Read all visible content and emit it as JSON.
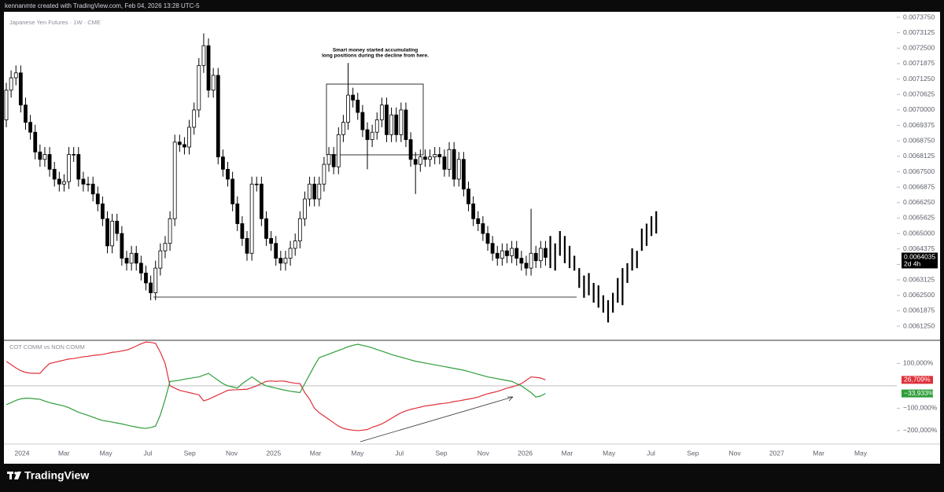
{
  "header": {
    "text": "kennanmte created with TradingView.com, Feb 04, 2026 13:28 UTC-5"
  },
  "footer": {
    "brand": "TradingView"
  },
  "time_axis": [
    "2024",
    "Mar",
    "May",
    "Jul",
    "Sep",
    "Nov",
    "2025",
    "Mar",
    "May",
    "Jul",
    "Sep",
    "Nov",
    "2026",
    "Mar",
    "May",
    "Jul",
    "Sep",
    "Nov",
    "2027",
    "Mar",
    "May"
  ],
  "chart_data": [
    {
      "type": "candlestick",
      "title": "Japanese Yen Futures · 1W · CME",
      "annotation": [
        "Smart money started accumulating",
        "long positions during the decline from here."
      ],
      "up_color": "#ffffff",
      "down_color": "#000000",
      "grid": false,
      "ylim": [
        0.006071,
        0.0073973
      ],
      "yticks": [
        {
          "value": 0.007375,
          "label": "0.0073750"
        },
        {
          "value": 0.0073125,
          "label": "0.0073125"
        },
        {
          "value": 0.00725,
          "label": "0.0072500"
        },
        {
          "value": 0.0071875,
          "label": "0.0071875"
        },
        {
          "value": 0.007125,
          "label": "0.0071250"
        },
        {
          "value": 0.0070625,
          "label": "0.0070625"
        },
        {
          "value": 0.007,
          "label": "0.0070000"
        },
        {
          "value": 0.0069375,
          "label": "0.0069375"
        },
        {
          "value": 0.006875,
          "label": "0.0068750"
        },
        {
          "value": 0.0068125,
          "label": "0.0068125"
        },
        {
          "value": 0.00675,
          "label": "0.0067500"
        },
        {
          "value": 0.0066875,
          "label": "0.0066875"
        },
        {
          "value": 0.006625,
          "label": "0.0066250"
        },
        {
          "value": 0.0065625,
          "label": "0.0065625"
        },
        {
          "value": 0.0065,
          "label": "0.0065000"
        },
        {
          "value": 0.0064375,
          "label": "0.0064375"
        },
        {
          "value": 0.006375,
          "label": "0.0063750"
        },
        {
          "value": 0.0063125,
          "label": "0.0063125"
        },
        {
          "value": 0.00625,
          "label": "0.0062500"
        },
        {
          "value": 0.0061875,
          "label": "0.0061875"
        },
        {
          "value": 0.006125,
          "label": "0.0061250"
        }
      ],
      "last_price_label": "0.0064035",
      "countdown": "2d 4h",
      "open": [
        0.00696,
        0.00708,
        0.00713,
        0.00715,
        0.00702,
        0.00695,
        0.00691,
        0.00683,
        0.0068,
        0.00682,
        0.00676,
        0.00672,
        0.0067,
        0.00671,
        0.00682,
        0.00682,
        0.00672,
        0.0067,
        0.0067,
        0.00666,
        0.00662,
        0.00656,
        0.00645,
        0.00655,
        0.0065,
        0.0064,
        0.00638,
        0.00642,
        0.00638,
        0.00634,
        0.0063,
        0.00626,
        0.00636,
        0.00643,
        0.00646,
        0.00656,
        0.00687,
        0.00686,
        0.00685,
        0.00693,
        0.007,
        0.00718,
        0.00726,
        0.00708,
        0.00714,
        0.00681,
        0.00676,
        0.00672,
        0.00662,
        0.00654,
        0.00648,
        0.00642,
        0.0067,
        0.0067,
        0.00656,
        0.00648,
        0.00646,
        0.0064,
        0.00638,
        0.0064,
        0.00644,
        0.00647,
        0.00656,
        0.00664,
        0.0067,
        0.00664,
        0.0067,
        0.00678,
        0.00682,
        0.00677,
        0.0069,
        0.00695,
        0.00706,
        0.00704,
        0.00699,
        0.00692,
        0.00688,
        0.00691,
        0.00696,
        0.00702,
        0.0069,
        0.00698,
        0.0069,
        0.007,
        0.00688,
        0.0068,
        0.00678,
        0.00681,
        0.0068,
        0.00681,
        0.00682,
        0.00681,
        0.00676,
        0.00684,
        0.00672,
        0.0068,
        0.00668,
        0.00662,
        0.00656,
        0.00654,
        0.0065,
        0.00646,
        0.00642,
        0.0064,
        0.00643,
        0.00641,
        0.00644,
        0.0064,
        0.00638,
        0.00636,
        0.00642,
        0.00639,
        0.00644
      ],
      "high": [
        0.00711,
        0.00716,
        0.00718,
        0.00718,
        0.00705,
        0.00698,
        0.00694,
        0.00686,
        0.00685,
        0.00685,
        0.00679,
        0.00675,
        0.00674,
        0.00685,
        0.00685,
        0.00685,
        0.00675,
        0.00673,
        0.00673,
        0.00669,
        0.00665,
        0.00659,
        0.00658,
        0.00658,
        0.00653,
        0.00643,
        0.00645,
        0.00645,
        0.00641,
        0.00637,
        0.00633,
        0.00639,
        0.00646,
        0.00649,
        0.00659,
        0.0069,
        0.0069,
        0.00689,
        0.00696,
        0.00703,
        0.00721,
        0.00731,
        0.00729,
        0.00717,
        0.00717,
        0.00684,
        0.00679,
        0.00675,
        0.00665,
        0.00657,
        0.00651,
        0.00673,
        0.00673,
        0.00673,
        0.00659,
        0.00651,
        0.00649,
        0.00643,
        0.00643,
        0.00647,
        0.0065,
        0.00659,
        0.00667,
        0.00673,
        0.00673,
        0.00673,
        0.00681,
        0.00685,
        0.00685,
        0.00693,
        0.00698,
        0.00719,
        0.00709,
        0.00707,
        0.00702,
        0.00695,
        0.00694,
        0.00699,
        0.00705,
        0.00705,
        0.00701,
        0.00701,
        0.00703,
        0.00703,
        0.00691,
        0.00683,
        0.00684,
        0.00684,
        0.00684,
        0.00685,
        0.00685,
        0.00684,
        0.00687,
        0.00687,
        0.00683,
        0.00683,
        0.00671,
        0.00665,
        0.00659,
        0.00657,
        0.00653,
        0.00649,
        0.00645,
        0.00646,
        0.00646,
        0.00647,
        0.00647,
        0.00643,
        0.00641,
        0.0066,
        0.00645,
        0.00647,
        0.00647
      ],
      "low": [
        0.00693,
        0.00705,
        0.0071,
        0.00699,
        0.00692,
        0.00688,
        0.0068,
        0.00677,
        0.00677,
        0.00673,
        0.00669,
        0.00667,
        0.00667,
        0.00668,
        0.00679,
        0.00669,
        0.00667,
        0.00667,
        0.00663,
        0.00659,
        0.00653,
        0.00642,
        0.00642,
        0.00647,
        0.00637,
        0.00635,
        0.00635,
        0.00635,
        0.00631,
        0.00627,
        0.00623,
        0.00623,
        0.00633,
        0.0064,
        0.00643,
        0.00653,
        0.00683,
        0.00682,
        0.00682,
        0.0069,
        0.00697,
        0.00715,
        0.00705,
        0.00705,
        0.00678,
        0.00673,
        0.00669,
        0.00659,
        0.00651,
        0.00645,
        0.00639,
        0.00639,
        0.00667,
        0.00653,
        0.00645,
        0.00643,
        0.00637,
        0.00635,
        0.00635,
        0.00637,
        0.00641,
        0.00644,
        0.00653,
        0.00661,
        0.00661,
        0.00661,
        0.00667,
        0.00675,
        0.00674,
        0.00674,
        0.00687,
        0.00692,
        0.00701,
        0.00696,
        0.00689,
        0.00676,
        0.00685,
        0.00688,
        0.00693,
        0.00687,
        0.00687,
        0.00687,
        0.00687,
        0.00685,
        0.00677,
        0.00666,
        0.00675,
        0.00677,
        0.00677,
        0.00678,
        0.00678,
        0.00673,
        0.00673,
        0.00669,
        0.00669,
        0.00665,
        0.00659,
        0.00653,
        0.00651,
        0.00647,
        0.00643,
        0.00639,
        0.00637,
        0.00637,
        0.00638,
        0.00638,
        0.00637,
        0.00635,
        0.00633,
        0.00633,
        0.00636,
        0.00636,
        0.00637
      ],
      "close": [
        0.00708,
        0.00713,
        0.00715,
        0.00702,
        0.00695,
        0.00691,
        0.00683,
        0.0068,
        0.00682,
        0.00676,
        0.00672,
        0.0067,
        0.00671,
        0.00682,
        0.00682,
        0.00672,
        0.0067,
        0.0067,
        0.00666,
        0.00662,
        0.00656,
        0.00645,
        0.00655,
        0.0065,
        0.0064,
        0.00638,
        0.00642,
        0.00638,
        0.00634,
        0.0063,
        0.00626,
        0.00636,
        0.00643,
        0.00646,
        0.00656,
        0.00687,
        0.00686,
        0.00685,
        0.00693,
        0.007,
        0.00718,
        0.00726,
        0.00708,
        0.00714,
        0.00681,
        0.00676,
        0.00672,
        0.00662,
        0.00654,
        0.00648,
        0.00642,
        0.0067,
        0.0067,
        0.00656,
        0.00648,
        0.00646,
        0.0064,
        0.00638,
        0.0064,
        0.00644,
        0.00647,
        0.00656,
        0.00664,
        0.0067,
        0.00664,
        0.0067,
        0.00678,
        0.00682,
        0.00677,
        0.0069,
        0.00695,
        0.00706,
        0.00704,
        0.00699,
        0.00692,
        0.00688,
        0.00691,
        0.00696,
        0.00702,
        0.0069,
        0.00698,
        0.0069,
        0.007,
        0.00688,
        0.0068,
        0.00678,
        0.00681,
        0.0068,
        0.00681,
        0.00682,
        0.00681,
        0.00676,
        0.00684,
        0.00672,
        0.0068,
        0.00668,
        0.00662,
        0.00656,
        0.00654,
        0.0065,
        0.00646,
        0.00642,
        0.0064,
        0.00643,
        0.00641,
        0.00644,
        0.0064,
        0.00638,
        0.00636,
        0.00642,
        0.00639,
        0.00644,
        0.0064035
      ],
      "projection": {
        "color": "#000000",
        "high": [
          0.00649,
          0.00646,
          0.00651,
          0.00649,
          0.00645,
          0.00641,
          0.00636,
          0.00633,
          0.00634,
          0.0063,
          0.00629,
          0.00625,
          0.00623,
          0.00626,
          0.00632,
          0.00636,
          0.00638,
          0.00644,
          0.00643,
          0.00652,
          0.00654,
          0.00657,
          0.00659
        ],
        "low": [
          0.00636,
          0.00635,
          0.00641,
          0.00638,
          0.00636,
          0.00635,
          0.00628,
          0.00624,
          0.00625,
          0.00622,
          0.0062,
          0.00618,
          0.00614,
          0.00618,
          0.00622,
          0.00621,
          0.0063,
          0.00635,
          0.00636,
          0.00643,
          0.00645,
          0.00649,
          0.0065
        ]
      }
    },
    {
      "type": "line",
      "title": "COT COMM vs NON COMM",
      "ylim": [
        -260000,
        203500
      ],
      "yticks": [
        {
          "value": 100000,
          "label": "100,000%"
        },
        {
          "value": -100000,
          "label": "−100,000%"
        },
        {
          "value": -200000,
          "label": "−200,000%"
        }
      ],
      "series": [
        {
          "color": "#e0303a",
          "last_value_label": "26,709%",
          "values": [
            109000,
            95000,
            80000,
            68000,
            60000,
            57000,
            56000,
            56000,
            80000,
            100000,
            105000,
            110000,
            115000,
            120000,
            122000,
            126000,
            130000,
            132000,
            136000,
            138000,
            140000,
            145000,
            150000,
            152000,
            156000,
            160000,
            168000,
            178000,
            188000,
            196000,
            194000,
            190000,
            150000,
            100000,
            0,
            -10000,
            -20000,
            -25000,
            -30000,
            -35000,
            -40000,
            -67000,
            -60000,
            -50000,
            -40000,
            -30000,
            -20000,
            -18000,
            -17000,
            -16000,
            -15000,
            -8000,
            0,
            10000,
            20000,
            22000,
            20000,
            22000,
            20000,
            15000,
            12000,
            10000,
            -30000,
            -60000,
            -100000,
            -120000,
            -135000,
            -150000,
            -165000,
            -180000,
            -190000,
            -195000,
            -198000,
            -200000,
            -198000,
            -195000,
            -185000,
            -178000,
            -170000,
            -158000,
            -145000,
            -132000,
            -120000,
            -112000,
            -105000,
            -100000,
            -95000,
            -90000,
            -87000,
            -84000,
            -80000,
            -78000,
            -75000,
            -70000,
            -67000,
            -63000,
            -59000,
            -55000,
            -50000,
            -42000,
            -35000,
            -30000,
            -25000,
            -18000,
            -10000,
            -5000,
            2000,
            10000,
            25000,
            40000,
            38000,
            35000,
            26709
          ]
        },
        {
          "color": "#2e9e3a",
          "last_value_label": "−33,933%",
          "values": [
            -84000,
            -75000,
            -65000,
            -58000,
            -55000,
            -56000,
            -58000,
            -60000,
            -68000,
            -75000,
            -80000,
            -85000,
            -90000,
            -98000,
            -108000,
            -118000,
            -125000,
            -132000,
            -140000,
            -148000,
            -155000,
            -158000,
            -162000,
            -166000,
            -170000,
            -175000,
            -180000,
            -184000,
            -188000,
            -190000,
            -186000,
            -180000,
            -130000,
            -60000,
            20000,
            22000,
            25000,
            30000,
            33000,
            37000,
            40000,
            48000,
            56000,
            40000,
            25000,
            10000,
            0,
            -5000,
            -10000,
            10000,
            25000,
            40000,
            25000,
            10000,
            0,
            -5000,
            -10000,
            -15000,
            -20000,
            -24000,
            -27000,
            -30000,
            10000,
            50000,
            90000,
            126000,
            134000,
            142000,
            150000,
            158000,
            166000,
            175000,
            181000,
            186000,
            181000,
            176000,
            170000,
            162000,
            155000,
            148000,
            140000,
            134000,
            128000,
            122000,
            116000,
            110000,
            106000,
            102000,
            98000,
            94000,
            90000,
            86000,
            82000,
            78000,
            74000,
            70000,
            64000,
            58000,
            52000,
            46000,
            40000,
            36000,
            32000,
            28000,
            24000,
            20000,
            10000,
            0,
            -15000,
            -30000,
            -50000,
            -45000,
            -33933
          ]
        }
      ]
    }
  ]
}
